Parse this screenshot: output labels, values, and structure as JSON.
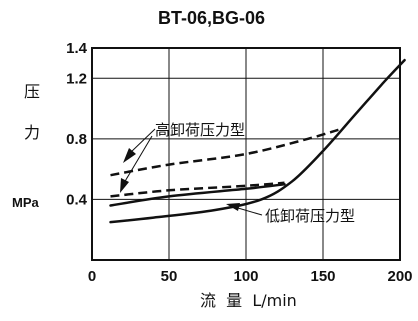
{
  "chart_data": {
    "type": "line",
    "title": "BT-06,BG-06",
    "ylabel_chars": [
      "压",
      "力"
    ],
    "yunit": "MPa",
    "xlabel": "流  量  L/min",
    "xlim": [
      0,
      200
    ],
    "ylim": [
      0,
      1.4
    ],
    "xticks": [
      "0",
      "50",
      "100",
      "150",
      "200"
    ],
    "yticks": [
      "0.4",
      "0.8",
      "1.2",
      "1.4"
    ],
    "grid": true,
    "annotations": [
      "高卸荷压力型",
      "低卸荷压力型"
    ],
    "series": [
      {
        "name": "高卸荷压力型",
        "style": "dashed",
        "x": [
          12,
          50,
          100,
          140,
          160
        ],
        "y": [
          0.56,
          0.63,
          0.7,
          0.8,
          0.86
        ]
      },
      {
        "name": "高卸荷压力型",
        "style": "dashed",
        "x": [
          12,
          50,
          100,
          125
        ],
        "y": [
          0.42,
          0.46,
          0.49,
          0.51
        ]
      },
      {
        "name": "低卸荷压力型",
        "style": "solid",
        "x": [
          12,
          50,
          100,
          125
        ],
        "y": [
          0.36,
          0.42,
          0.47,
          0.5
        ]
      },
      {
        "name": "低卸荷压力型",
        "style": "solid",
        "x": [
          12,
          40,
          80,
          110,
          130,
          150,
          170,
          190,
          203
        ],
        "y": [
          0.25,
          0.28,
          0.33,
          0.4,
          0.52,
          0.72,
          0.95,
          1.18,
          1.32
        ]
      }
    ]
  }
}
